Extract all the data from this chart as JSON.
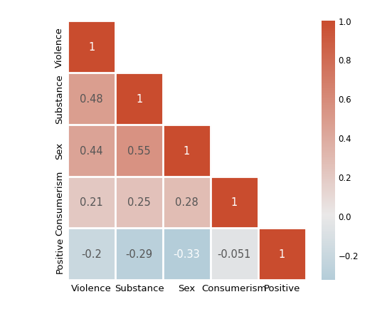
{
  "labels": [
    "Violence",
    "Substance",
    "Sex",
    "Consumerism",
    "Positive"
  ],
  "matrix": [
    [
      1,
      null,
      null,
      null,
      null
    ],
    [
      0.48,
      1,
      null,
      null,
      null
    ],
    [
      0.44,
      0.55,
      1,
      null,
      null
    ],
    [
      0.21,
      0.25,
      0.28,
      1,
      null
    ],
    [
      -0.2,
      -0.29,
      -0.33,
      -0.051,
      1
    ]
  ],
  "text_labels": [
    [
      "1",
      "",
      "",
      "",
      ""
    ],
    [
      "0.48",
      "1",
      "",
      "",
      ""
    ],
    [
      "0.44",
      "0.55",
      "1",
      "",
      ""
    ],
    [
      "0.21",
      "0.25",
      "0.28",
      "1",
      ""
    ],
    [
      "-0.2",
      "-0.29",
      "-0.33",
      "-0.051",
      "1"
    ]
  ],
  "vmin": -0.33,
  "vmax": 1.0,
  "cmap_colors": [
    "#b4cdd9",
    "#eae8e8",
    "#c94c2e"
  ],
  "background_color": "#ffffff",
  "cell_text_color_dark": "#555555",
  "cell_text_color_light": "#ffffff",
  "figsize": [
    5.44,
    4.56
  ],
  "dpi": 100,
  "colorbar_ticks": [
    1.0,
    0.8,
    0.6,
    0.4,
    0.2,
    0.0,
    -0.2
  ],
  "colorbar_ticklabels": [
    "1.0",
    "0.8",
    "0.6",
    "0.4",
    "0.2",
    "0.0",
    "−0.2"
  ]
}
